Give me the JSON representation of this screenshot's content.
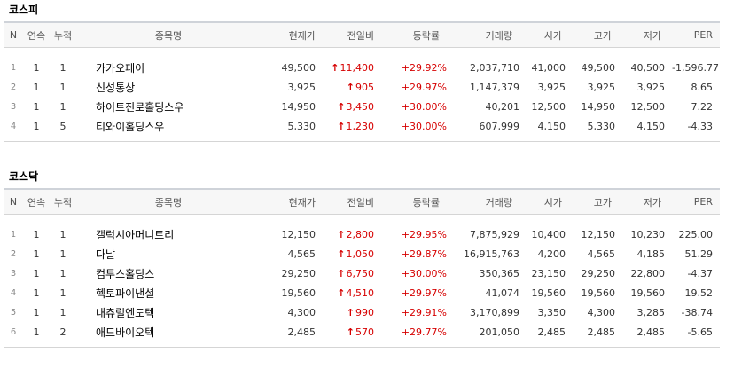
{
  "columns": [
    "N",
    "연속",
    "누적",
    "종목명",
    "현재가",
    "전일비",
    "등락률",
    "거래량",
    "시가",
    "고가",
    "저가",
    "PER"
  ],
  "up_color": "#d60000",
  "sections": [
    {
      "title": "코스피",
      "rows": [
        {
          "n": "1",
          "streak": "1",
          "cumulative": "1",
          "name": "카카오페이",
          "price": "49,500",
          "change": "11,400",
          "rate": "+29.92%",
          "volume": "2,037,710",
          "open": "41,000",
          "high": "49,500",
          "low": "40,500",
          "per": "-1,596.77"
        },
        {
          "n": "2",
          "streak": "1",
          "cumulative": "1",
          "name": "신성통상",
          "price": "3,925",
          "change": "905",
          "rate": "+29.97%",
          "volume": "1,147,379",
          "open": "3,925",
          "high": "3,925",
          "low": "3,925",
          "per": "8.65"
        },
        {
          "n": "3",
          "streak": "1",
          "cumulative": "1",
          "name": "하이트진로홀딩스우",
          "price": "14,950",
          "change": "3,450",
          "rate": "+30.00%",
          "volume": "40,201",
          "open": "12,500",
          "high": "14,950",
          "low": "12,500",
          "per": "7.22"
        },
        {
          "n": "4",
          "streak": "1",
          "cumulative": "5",
          "name": "티와이홀딩스우",
          "price": "5,330",
          "change": "1,230",
          "rate": "+30.00%",
          "volume": "607,999",
          "open": "4,150",
          "high": "5,330",
          "low": "4,150",
          "per": "-4.33"
        }
      ]
    },
    {
      "title": "코스닥",
      "rows": [
        {
          "n": "1",
          "streak": "1",
          "cumulative": "1",
          "name": "갤럭시아머니트리",
          "price": "12,150",
          "change": "2,800",
          "rate": "+29.95%",
          "volume": "7,875,929",
          "open": "10,400",
          "high": "12,150",
          "low": "10,230",
          "per": "225.00"
        },
        {
          "n": "2",
          "streak": "1",
          "cumulative": "1",
          "name": "다날",
          "price": "4,565",
          "change": "1,050",
          "rate": "+29.87%",
          "volume": "16,915,763",
          "open": "4,200",
          "high": "4,565",
          "low": "4,185",
          "per": "51.29"
        },
        {
          "n": "3",
          "streak": "1",
          "cumulative": "1",
          "name": "컴투스홀딩스",
          "price": "29,250",
          "change": "6,750",
          "rate": "+30.00%",
          "volume": "350,365",
          "open": "23,150",
          "high": "29,250",
          "low": "22,800",
          "per": "-4.37"
        },
        {
          "n": "4",
          "streak": "1",
          "cumulative": "1",
          "name": "헥토파이낸셜",
          "price": "19,560",
          "change": "4,510",
          "rate": "+29.97%",
          "volume": "41,074",
          "open": "19,560",
          "high": "19,560",
          "low": "19,560",
          "per": "19.52"
        },
        {
          "n": "5",
          "streak": "1",
          "cumulative": "1",
          "name": "내츄럴엔도텍",
          "price": "4,300",
          "change": "990",
          "rate": "+29.91%",
          "volume": "3,170,899",
          "open": "3,350",
          "high": "4,300",
          "low": "3,285",
          "per": "-38.74"
        },
        {
          "n": "6",
          "streak": "1",
          "cumulative": "2",
          "name": "애드바이오텍",
          "price": "2,485",
          "change": "570",
          "rate": "+29.77%",
          "volume": "201,050",
          "open": "2,485",
          "high": "2,485",
          "low": "2,485",
          "per": "-5.65"
        }
      ]
    }
  ]
}
